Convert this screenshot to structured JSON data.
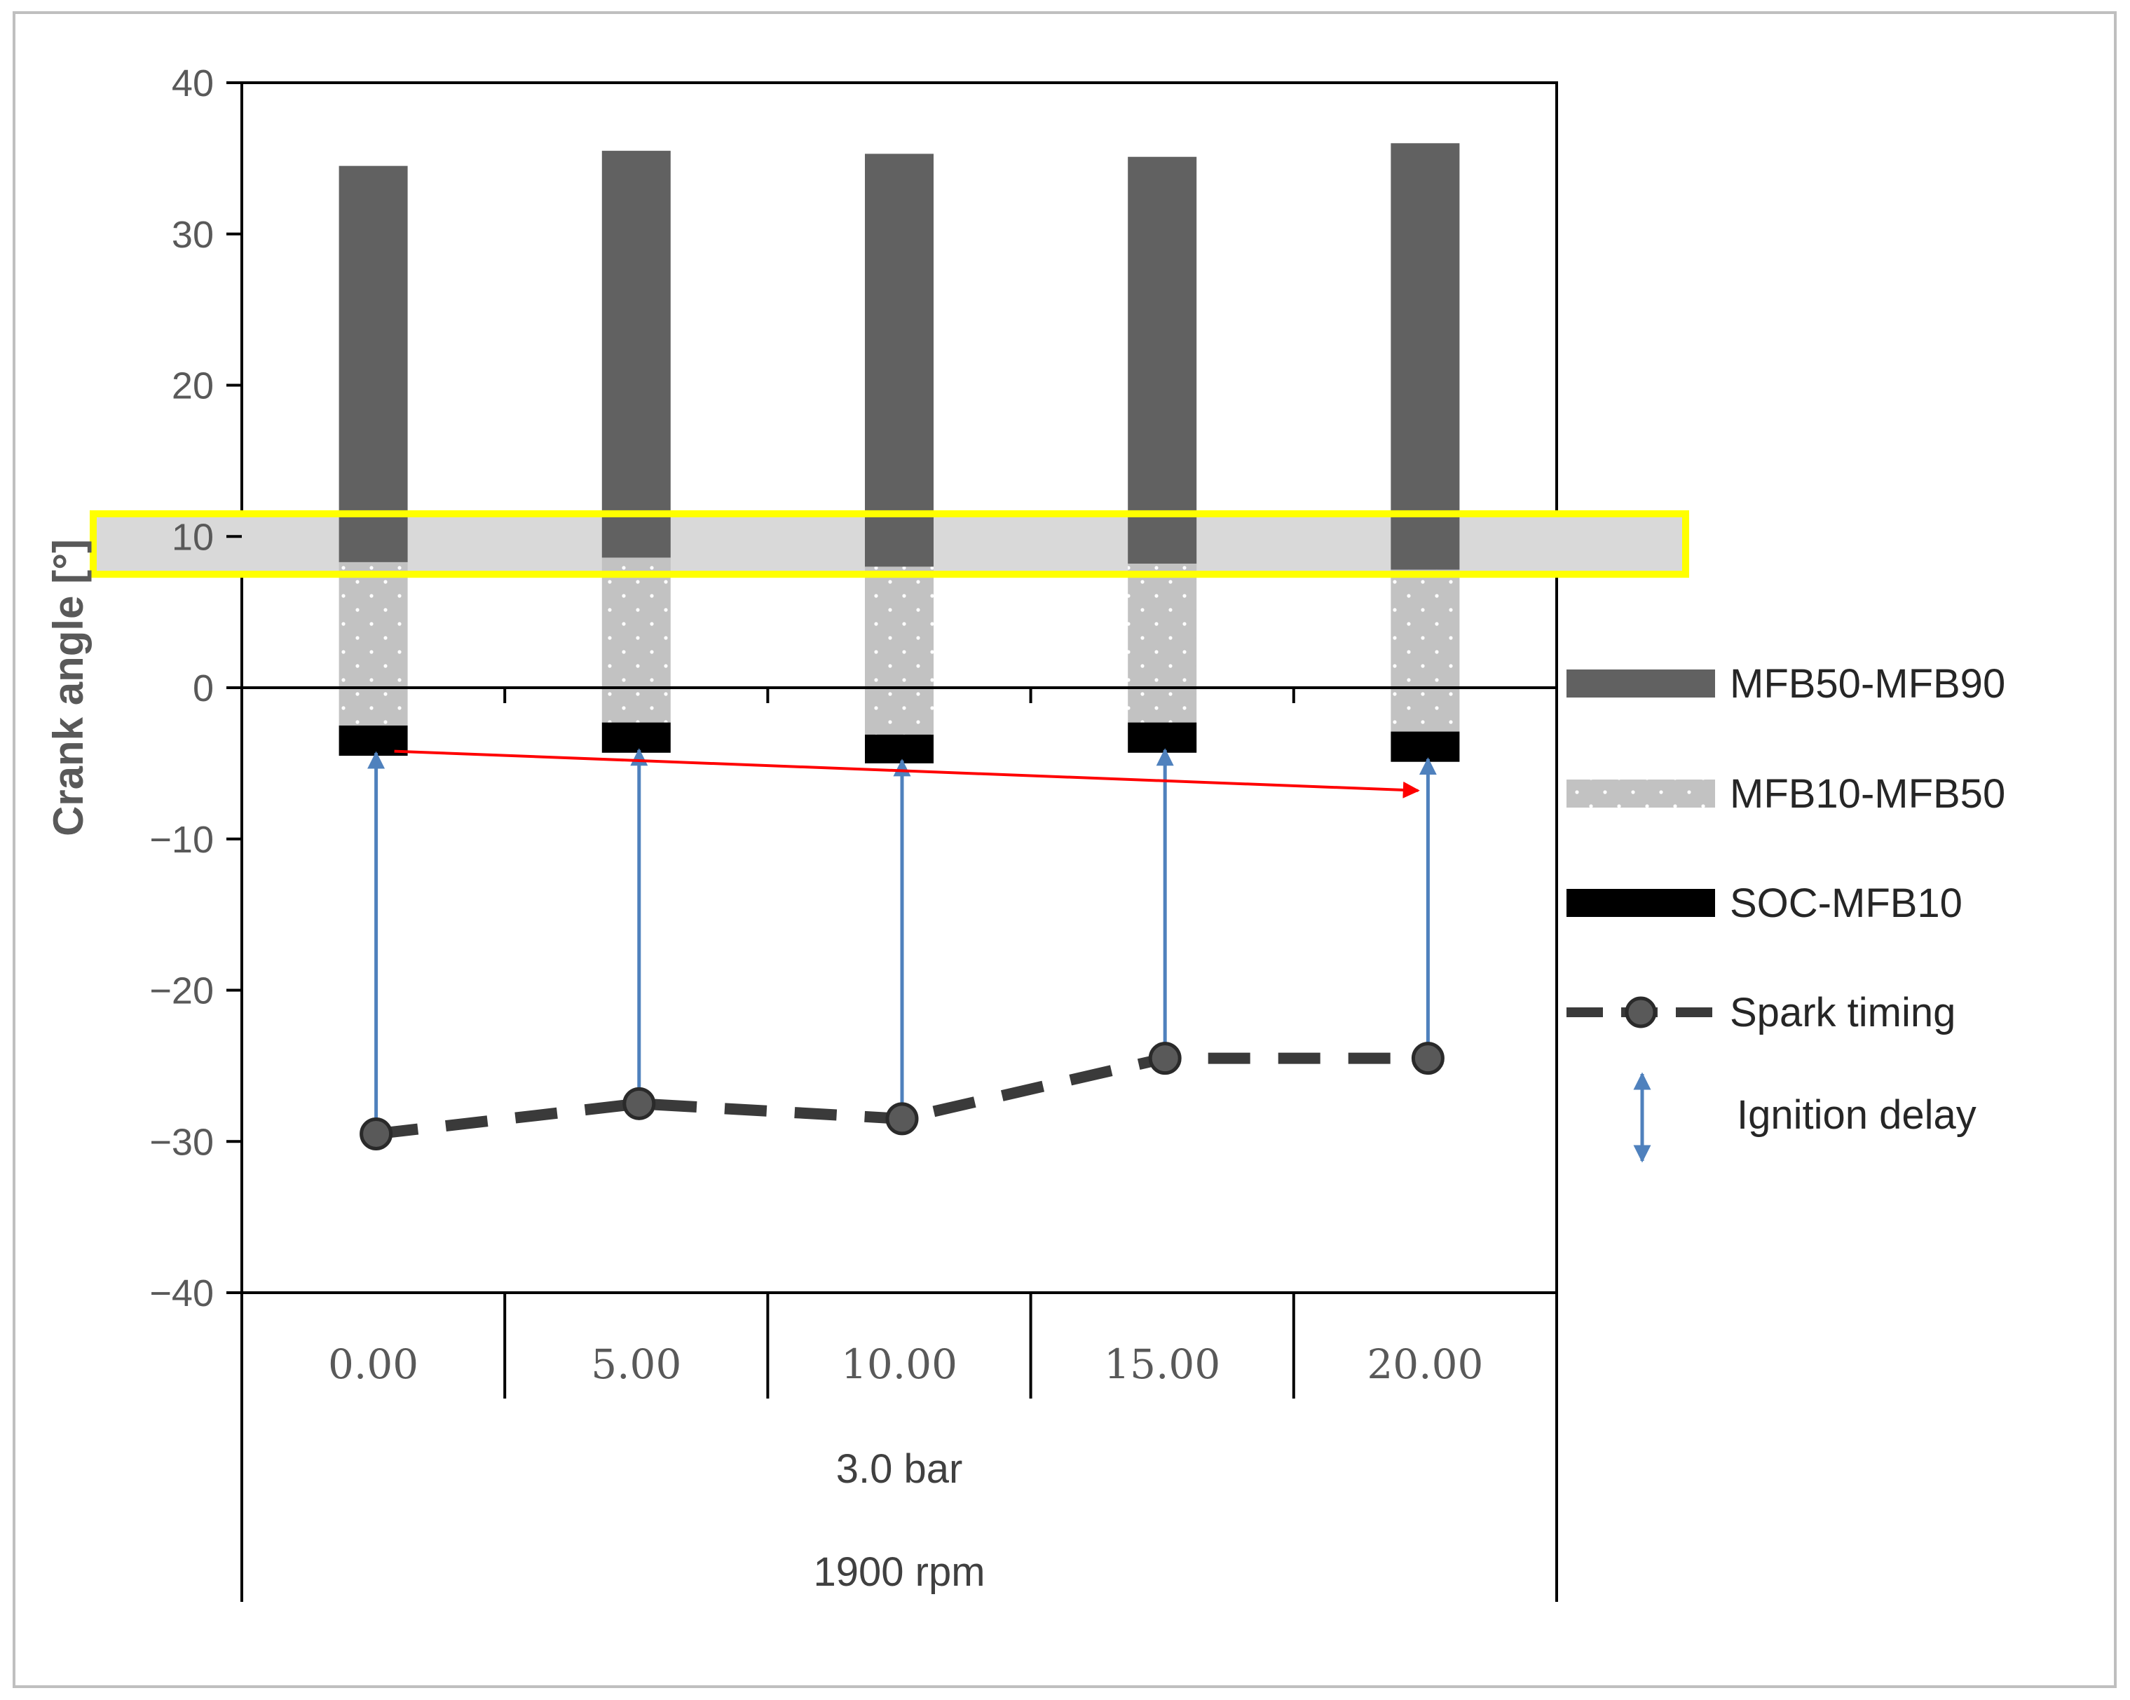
{
  "colors": {
    "mfb50_mfb90": "#616161",
    "mfb10_mfb50": "#c2c2c2",
    "soc_mfb10": "#000000",
    "spark": "#3a3a3a",
    "ignition_arrow": "#4f81bd",
    "trend_arrow": "#ff0000",
    "highlight_fill": "#d9d9d9",
    "highlight_border": "#ffff00"
  },
  "chart_data": {
    "type": "bar",
    "subtype": "floating-stacked-bar-with-line",
    "ylabel": "Crank angle [°]",
    "xlabel": "",
    "title": "",
    "ylim": [
      -40,
      40
    ],
    "yticks": [
      "40",
      "30",
      "20",
      "10",
      "0",
      "−10",
      "−20",
      "−30",
      "−40"
    ],
    "categories": [
      "0.00",
      "5.00",
      "10.00",
      "15.00",
      "20.00"
    ],
    "group_labels": [
      "3.0 bar",
      "1900 rpm"
    ],
    "grid": false,
    "legend_position": "right",
    "series": [
      {
        "name": "MFB50-MFB90",
        "kind": "floating-bar",
        "color_key": "mfb50_mfb90",
        "low": [
          8.3,
          8.6,
          8.0,
          8.2,
          7.8
        ],
        "high": [
          34.5,
          35.5,
          35.3,
          35.1,
          36.0
        ]
      },
      {
        "name": "MFB10-MFB50",
        "kind": "floating-bar-dotted",
        "color_key": "mfb10_mfb50",
        "low": [
          -2.5,
          -2.3,
          -3.1,
          -2.3,
          -2.9
        ],
        "high": [
          8.3,
          8.6,
          8.0,
          8.2,
          7.8
        ]
      },
      {
        "name": "SOC-MFB10",
        "kind": "floating-bar",
        "color_key": "soc_mfb10",
        "low": [
          -4.5,
          -4.3,
          -5.0,
          -4.3,
          -4.9
        ],
        "high": [
          -2.5,
          -2.3,
          -3.1,
          -2.3,
          -2.9
        ]
      },
      {
        "name": "Spark timing",
        "kind": "dashed-line-markers",
        "color_key": "spark",
        "values": [
          -29.5,
          -27.5,
          -28.5,
          -24.5,
          -24.5
        ]
      }
    ],
    "legend": [
      {
        "label": "MFB50-MFB90",
        "symbol": "solid-bar"
      },
      {
        "label": "MFB10-MFB50",
        "symbol": "dotted-bar"
      },
      {
        "label": "SOC-MFB10",
        "symbol": "black-bar"
      },
      {
        "label": "Spark timing",
        "symbol": "dashed-line-marker"
      },
      {
        "label": "Ignition delay",
        "symbol": "double-arrow"
      }
    ],
    "annotations": {
      "ignition_delay_arrows": "from Spark timing to SOC at each category",
      "trend_arrow": {
        "from_y": -4.2,
        "to_y": -6.8,
        "color_key": "trend_arrow"
      },
      "highlight_band": {
        "y_low": 7.5,
        "y_high": 11.5
      }
    }
  }
}
